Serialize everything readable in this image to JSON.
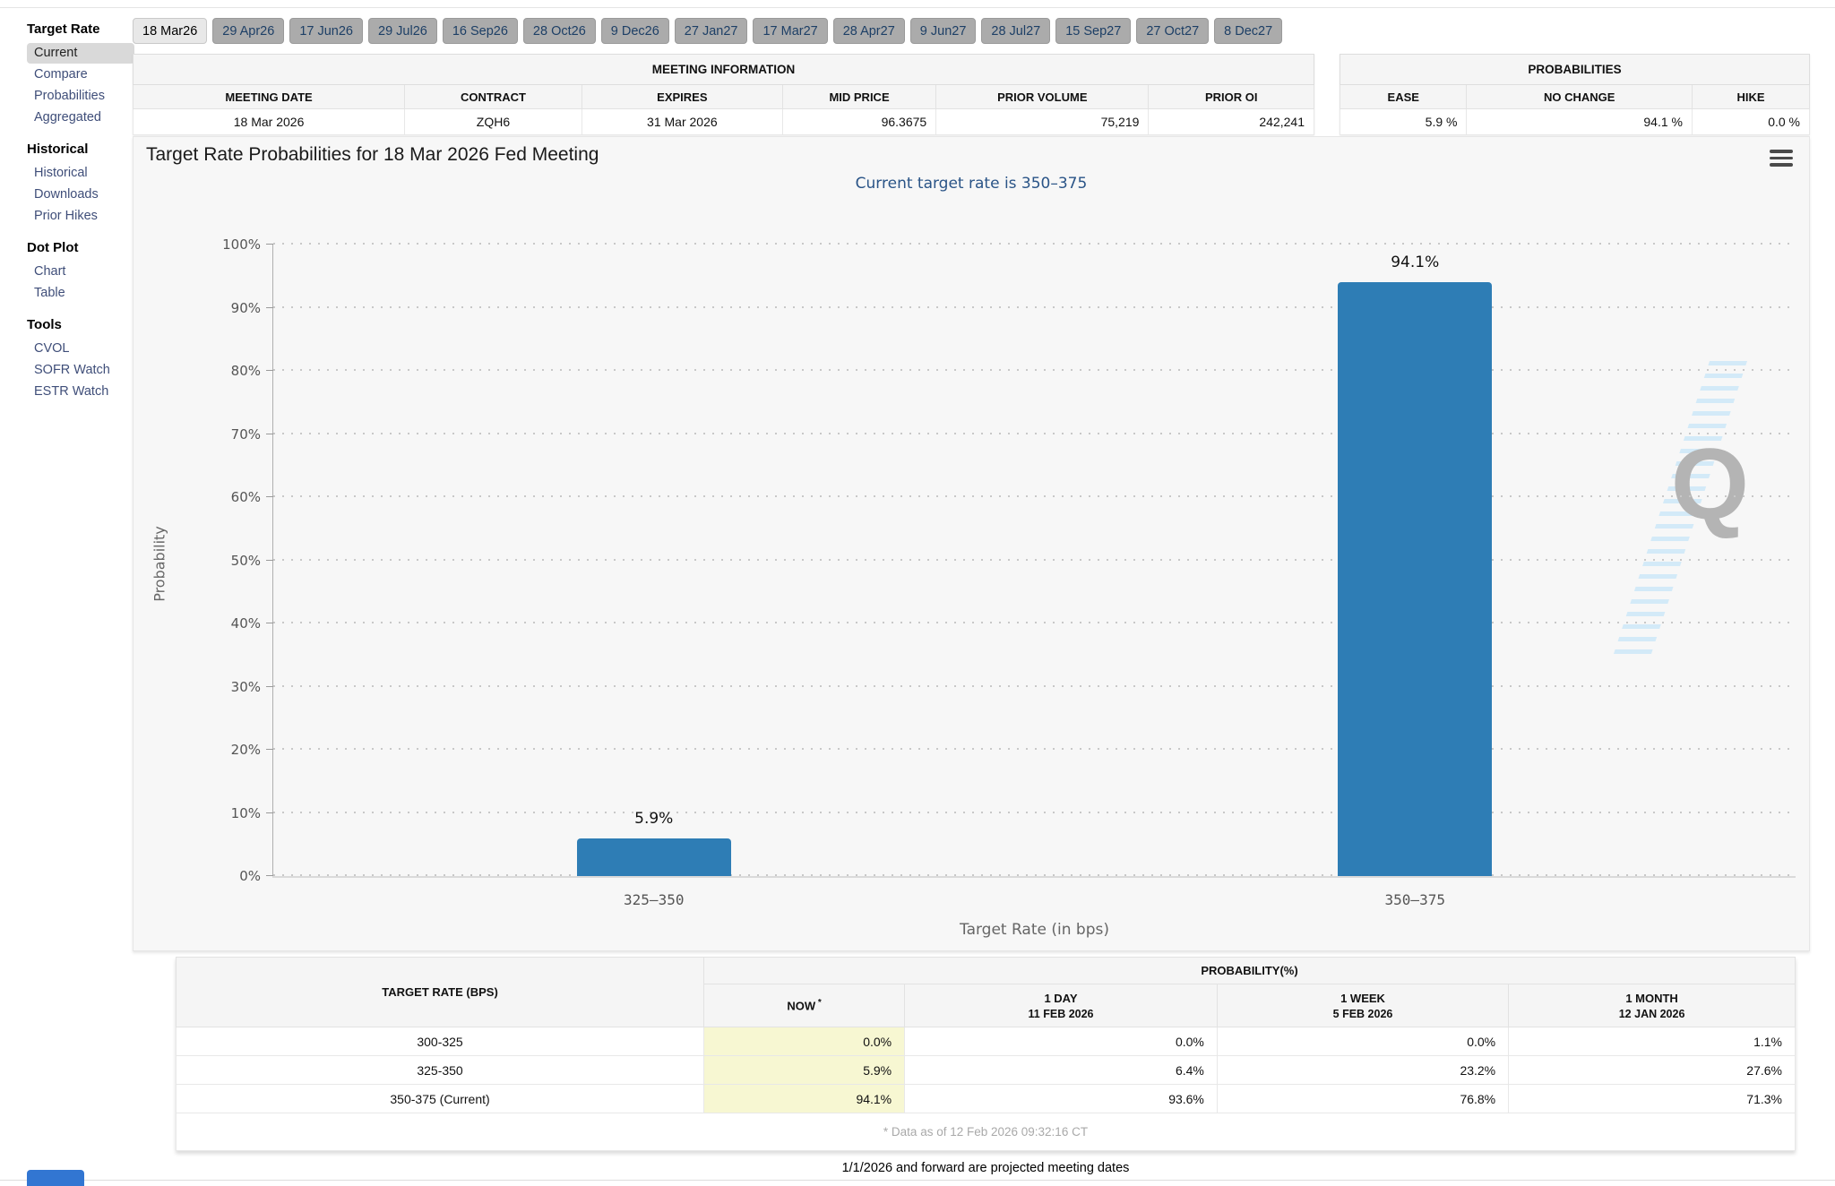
{
  "colors": {
    "bar": "#2e7db5",
    "subtitle_blue": "#2a5487",
    "now_highlight": "#f7f7d2",
    "tab_selected_bg": "#e8e8e8",
    "tab_bg": "#ababab"
  },
  "tabs": {
    "selected": "18 Mar26",
    "dates": [
      "18 Mar26",
      "29 Apr26",
      "17 Jun26",
      "29 Jul26",
      "16 Sep26",
      "28 Oct26",
      "9 Dec26",
      "27 Jan27",
      "17 Mar27",
      "28 Apr27",
      "9 Jun27",
      "28 Jul27",
      "15 Sep27",
      "27 Oct27",
      "8 Dec27"
    ]
  },
  "sidebar": {
    "sections": [
      {
        "title": "Target Rate",
        "items": [
          {
            "label": "Current",
            "selected": true
          },
          {
            "label": "Compare"
          },
          {
            "label": "Probabilities"
          },
          {
            "label": "Aggregated"
          }
        ]
      },
      {
        "title": "Historical",
        "items": [
          {
            "label": "Historical"
          },
          {
            "label": "Downloads"
          },
          {
            "label": "Prior Hikes"
          }
        ]
      },
      {
        "title": "Dot Plot",
        "items": [
          {
            "label": "Chart"
          },
          {
            "label": "Table"
          }
        ]
      },
      {
        "title": "Tools",
        "items": [
          {
            "label": "CVOL"
          },
          {
            "label": "SOFR Watch"
          },
          {
            "label": "ESTR Watch"
          }
        ]
      }
    ]
  },
  "meeting_info": {
    "title": "MEETING INFORMATION",
    "columns": [
      "MEETING DATE",
      "CONTRACT",
      "EXPIRES",
      "MID PRICE",
      "PRIOR VOLUME",
      "PRIOR OI"
    ],
    "values": [
      "18 Mar 2026",
      "ZQH6",
      "31 Mar 2026",
      "96.3675",
      "75,219",
      "242,241"
    ],
    "align": [
      "c",
      "c",
      "c",
      "r",
      "r",
      "r"
    ],
    "col_widths": [
      "23%",
      "15%",
      "17%",
      "13%",
      "18%",
      "14%"
    ]
  },
  "probabilities_info": {
    "title": "PROBABILITIES",
    "columns": [
      "EASE",
      "NO CHANGE",
      "HIKE"
    ],
    "values": [
      "5.9 %",
      "94.1 %",
      "0.0 %"
    ],
    "align": [
      "r",
      "r",
      "r"
    ],
    "col_widths": [
      "27%",
      "48%",
      "25%"
    ]
  },
  "chart": {
    "title": "Target Rate Probabilities for 18 Mar 2026 Fed Meeting",
    "subtitle": "Current target rate is 350–375",
    "menu_icon": "hamburger-menu-icon",
    "watermark_letter": "Q"
  },
  "chart_data": {
    "type": "bar",
    "title": "Target Rate Probabilities for 18 Mar 2026 Fed Meeting",
    "subtitle": "Current target rate is 350–375",
    "categories": [
      "325–350",
      "350–375"
    ],
    "values": [
      5.9,
      94.1
    ],
    "bar_labels": [
      "5.9%",
      "94.1%"
    ],
    "xlabel": "Target Rate (in bps)",
    "ylabel": "Probability",
    "ylim": [
      0,
      100
    ],
    "yticks": [
      "0%",
      "10%",
      "20%",
      "30%",
      "40%",
      "50%",
      "60%",
      "70%",
      "80%",
      "90%",
      "100%"
    ],
    "grid": "dotted horizontal gridlines",
    "legend": "none",
    "bar_color": "#2e7db5"
  },
  "probability_table": {
    "rate_header": "TARGET RATE (BPS)",
    "group_header": "PROBABILITY(%)",
    "columns": [
      {
        "line1": "NOW",
        "sup": "*"
      },
      {
        "line1": "1 DAY",
        "line2": "11 FEB 2026"
      },
      {
        "line1": "1 WEEK",
        "line2": "5 FEB 2026"
      },
      {
        "line1": "1 MONTH",
        "line2": "12 JAN 2026"
      }
    ],
    "col_widths": [
      "32.6%",
      "12.4%",
      "19.3%",
      "18.0%",
      "17.7%"
    ],
    "rows": [
      {
        "rate": "300-325",
        "values": [
          "0.0%",
          "0.0%",
          "0.0%",
          "1.1%"
        ]
      },
      {
        "rate": "325-350",
        "values": [
          "5.9%",
          "6.4%",
          "23.2%",
          "27.6%"
        ]
      },
      {
        "rate": "350-375 (Current)",
        "values": [
          "94.1%",
          "93.6%",
          "76.8%",
          "71.3%"
        ]
      }
    ],
    "footnote": "* Data as of 12 Feb 2026 09:32:16 CT"
  },
  "footer": {
    "note": "1/1/2026 and forward are projected meeting dates"
  }
}
